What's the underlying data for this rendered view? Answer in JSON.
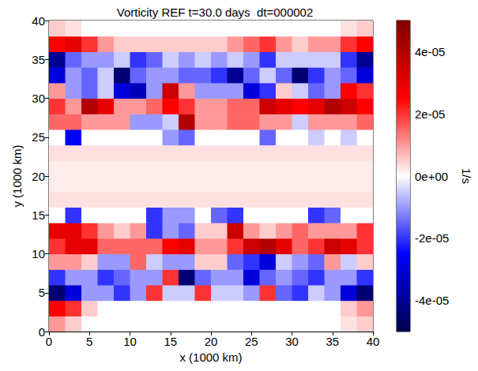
{
  "chart_data": {
    "type": "heatmap",
    "title": "Vorticity REF t=30.0 days  dt=000002",
    "x_label": "x (1000 km)",
    "y_label": "y (1000 km)",
    "xlim": [
      0,
      40
    ],
    "xticks": [
      0,
      5,
      10,
      15,
      20,
      25,
      30,
      35,
      40
    ],
    "ylim": [
      0,
      40
    ],
    "yticks": [
      0,
      5,
      10,
      15,
      20,
      25,
      30,
      35,
      40
    ],
    "grid": false,
    "x_edges": [
      0,
      2,
      4,
      6,
      8,
      10,
      12,
      14,
      16,
      18,
      20,
      22,
      24,
      26,
      28,
      30,
      32,
      34,
      36,
      38,
      40
    ],
    "y_edges": [
      0,
      2,
      4,
      6,
      8,
      10,
      12,
      14,
      16,
      18,
      20,
      22,
      24,
      26,
      28,
      30,
      32,
      34,
      36,
      38,
      40
    ],
    "values": [
      [
        1e-05,
        5e-06,
        0,
        0,
        0,
        0,
        0,
        0,
        0,
        0,
        0,
        0,
        0,
        0,
        0,
        0,
        0,
        0,
        3e-06,
        5e-06
      ],
      [
        2.5e-05,
        2e-05,
        5e-06,
        0,
        0,
        0,
        0,
        0,
        0,
        0,
        0,
        0,
        0,
        0,
        0,
        0,
        0,
        0,
        5e-06,
        1e-05
      ],
      [
        -4.5e-05,
        -3e-05,
        -1e-05,
        -1e-05,
        -2e-05,
        -1e-05,
        2e-05,
        -5e-06,
        -5e-06,
        2e-05,
        -5e-06,
        -5e-06,
        -1e-05,
        2e-05,
        -1.5e-05,
        -2e-05,
        -5e-06,
        -1e-05,
        -3e-05,
        -4.5e-05
      ],
      [
        -2e-05,
        -1e-05,
        -1e-05,
        -2e-05,
        -1.5e-05,
        -1e-05,
        -1e-05,
        2e-05,
        -4.5e-05,
        -1.5e-05,
        -1e-05,
        -1e-05,
        -3e-05,
        -1.5e-05,
        -1e-05,
        -1.5e-05,
        -2e-05,
        -1e-05,
        -1e-05,
        -2e-05
      ],
      [
        1e-05,
        1e-05,
        5e-06,
        -1e-05,
        -1e-05,
        1.5e-05,
        -5e-06,
        -1e-05,
        -1e-05,
        5e-06,
        5e-06,
        -1.5e-05,
        -2e-05,
        -3e-05,
        -5e-06,
        -1e-05,
        -1.5e-05,
        1e-05,
        -5e-06,
        5e-06
      ],
      [
        2e-05,
        3e-05,
        3e-05,
        1.5e-05,
        1.5e-05,
        1.5e-05,
        1.5e-05,
        2.5e-05,
        3e-05,
        1e-05,
        1e-05,
        2e-05,
        3.5e-05,
        4e-05,
        3e-05,
        1.5e-05,
        2e-05,
        3.5e-05,
        3e-05,
        2e-05
      ],
      [
        3e-05,
        3e-05,
        2e-05,
        1e-05,
        5e-06,
        1e-05,
        -2e-05,
        -1e-05,
        -1.5e-05,
        5e-06,
        5e-06,
        3.5e-05,
        1e-05,
        5e-06,
        1e-05,
        1.5e-05,
        1e-05,
        1e-05,
        1e-05,
        2e-05
      ],
      [
        0,
        -2e-05,
        0,
        0,
        0,
        0,
        -2e-05,
        -1e-05,
        -1e-05,
        0,
        -1.5e-05,
        -2e-05,
        0,
        0,
        0,
        0,
        -2e-05,
        -1.5e-05,
        0,
        0
      ],
      [
        3e-06,
        3e-06,
        3e-06,
        3e-06,
        3e-06,
        3e-06,
        3e-06,
        3e-06,
        3e-06,
        3e-06,
        3e-06,
        3e-06,
        3e-06,
        3e-06,
        3e-06,
        3e-06,
        3e-06,
        3e-06,
        3e-06,
        3e-06
      ],
      [
        2e-06,
        2e-06,
        2e-06,
        2e-06,
        2e-06,
        2e-06,
        2e-06,
        2e-06,
        2e-06,
        2e-06,
        2e-06,
        2e-06,
        2e-06,
        2e-06,
        2e-06,
        2e-06,
        2e-06,
        2e-06,
        2e-06,
        2e-06
      ],
      [
        2e-06,
        2e-06,
        2e-06,
        2e-06,
        2e-06,
        2e-06,
        2e-06,
        2e-06,
        2e-06,
        2e-06,
        2e-06,
        2e-06,
        2e-06,
        2e-06,
        2e-06,
        2e-06,
        2e-06,
        2e-06,
        2e-06,
        2e-06
      ],
      [
        3e-06,
        3e-06,
        3e-06,
        3e-06,
        3e-06,
        3e-06,
        3e-06,
        3e-06,
        3e-06,
        3e-06,
        3e-06,
        3e-06,
        3e-06,
        3e-06,
        3e-06,
        3e-06,
        3e-06,
        3e-06,
        3e-06,
        3e-06
      ],
      [
        0,
        -2.5e-05,
        0,
        0,
        0,
        0,
        0,
        -1e-05,
        -1.5e-05,
        0,
        0,
        0,
        0,
        -1.5e-05,
        0,
        0,
        -5e-06,
        0,
        -5e-06,
        0
      ],
      [
        1.5e-05,
        1.5e-05,
        1e-05,
        1e-05,
        1e-05,
        -1e-05,
        -1e-05,
        -5e-06,
        4e-05,
        1e-05,
        1e-05,
        1.5e-05,
        1.5e-05,
        1e-05,
        1e-05,
        -5e-06,
        1e-05,
        1e-05,
        1e-05,
        1.5e-05
      ],
      [
        2e-05,
        1e-05,
        4e-05,
        3e-05,
        1e-05,
        1e-05,
        1.5e-05,
        2.5e-05,
        2e-05,
        1e-05,
        1e-05,
        1.5e-05,
        1.5e-05,
        3.5e-05,
        3e-05,
        2.5e-05,
        3e-05,
        4e-05,
        3.5e-05,
        2.5e-05
      ],
      [
        1e-05,
        -1e-05,
        -1.5e-05,
        -5e-06,
        -3e-05,
        -3.5e-05,
        -1e-05,
        3.5e-05,
        1e-05,
        -1e-05,
        -1e-05,
        -1e-05,
        -3e-05,
        -2e-05,
        5e-06,
        -5e-06,
        -1.5e-05,
        -1e-05,
        2.5e-05,
        2e-05
      ],
      [
        -3e-05,
        -1e-05,
        -1.5e-05,
        -5e-06,
        -4.5e-05,
        -1.5e-05,
        -1e-05,
        -1e-05,
        -1.5e-05,
        -1.5e-05,
        -2e-05,
        -4e-05,
        -1.5e-05,
        -5e-06,
        -1.5e-05,
        -4.5e-05,
        -2e-05,
        -1e-05,
        -1.5e-05,
        -3e-05
      ],
      [
        -4e-05,
        -1.5e-05,
        -1e-05,
        -1e-05,
        -5e-06,
        -2e-05,
        -1.5e-05,
        -5e-06,
        -1e-05,
        -5e-06,
        -1e-05,
        -5e-06,
        -1e-05,
        -2e-05,
        -5e-06,
        -5e-06,
        -5e-06,
        -5e-06,
        -2e-05,
        -4e-05
      ],
      [
        2.5e-05,
        3e-05,
        2e-05,
        1e-05,
        5e-06,
        5e-06,
        5e-06,
        5e-06,
        5e-06,
        5e-06,
        5e-06,
        1e-05,
        1.5e-05,
        2e-05,
        1e-05,
        5e-06,
        1e-05,
        1e-05,
        2e-05,
        2.5e-05
      ],
      [
        5e-06,
        3e-06,
        0,
        0,
        0,
        0,
        0,
        0,
        0,
        0,
        0,
        0,
        0,
        0,
        0,
        0,
        0,
        0,
        3e-06,
        5e-06
      ]
    ],
    "colorbar": {
      "label": "1/s",
      "lim": [
        -5e-05,
        5e-05
      ],
      "ticks": [
        {
          "value": -4e-05,
          "label": "-4e-05"
        },
        {
          "value": -2e-05,
          "label": "-2e-05"
        },
        {
          "value": 0,
          "label": "0e+00"
        },
        {
          "value": 2e-05,
          "label": "2e-05"
        },
        {
          "value": 4e-05,
          "label": "4e-05"
        }
      ]
    }
  }
}
